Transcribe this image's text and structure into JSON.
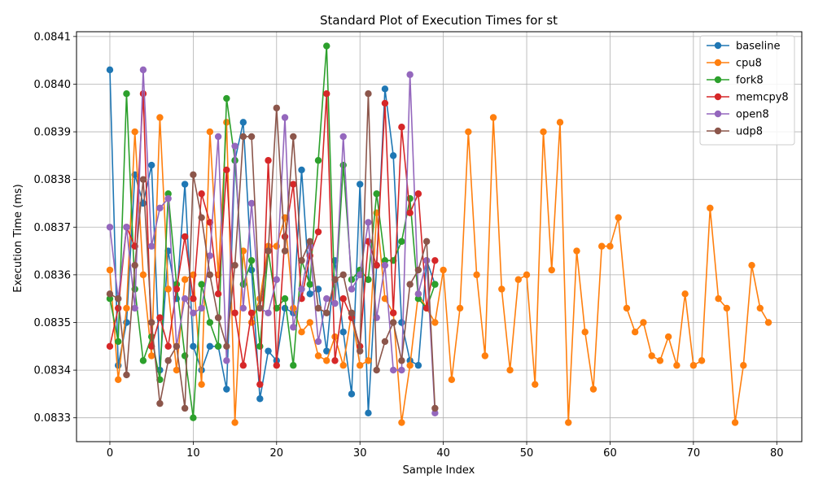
{
  "chart_data": {
    "type": "line",
    "title": "Standard Plot of Execution Times for st",
    "xlabel": "Sample Index",
    "ylabel": "Execution Time (ms)",
    "xlim": [
      -4,
      83
    ],
    "ylim": [
      0.08325,
      0.08411
    ],
    "xticks": [
      "0",
      "10",
      "20",
      "30",
      "40",
      "50",
      "60",
      "70",
      "80"
    ],
    "yticks": [
      "0.0833",
      "0.0834",
      "0.0835",
      "0.0836",
      "0.0837",
      "0.0838",
      "0.0839",
      "0.0840",
      "0.0841"
    ],
    "grid": true,
    "legend_position": "top-right",
    "series": [
      {
        "name": "baseline",
        "color": "#1f77b4",
        "values": [
          0.08403,
          0.08341,
          0.0835,
          0.08381,
          0.08375,
          0.08383,
          0.0834,
          0.08365,
          0.08355,
          0.08379,
          0.08345,
          0.0834,
          0.08345,
          0.08345,
          0.08336,
          0.08384,
          0.08392,
          0.08361,
          0.08334,
          0.08344,
          0.08342,
          0.08353,
          0.08352,
          0.08382,
          0.08356,
          0.08357,
          0.08344,
          0.08363,
          0.08348,
          0.08335,
          0.08379,
          0.08331,
          0.08362,
          0.08399,
          0.08385,
          0.0835,
          0.08342,
          0.08341,
          0.08363,
          0.08358
        ]
      },
      {
        "name": "cpu8",
        "color": "#ff7f0e",
        "values": [
          0.08361,
          0.08338,
          0.08353,
          0.0839,
          0.0836,
          0.08343,
          0.08393,
          0.08357,
          0.0834,
          0.08359,
          0.0836,
          0.08337,
          0.0839,
          0.0836,
          0.08392,
          0.08329,
          0.08365,
          0.0835,
          0.08355,
          0.08366,
          0.08366,
          0.08372,
          0.08353,
          0.08348,
          0.0835,
          0.08343,
          0.08342,
          0.08347,
          0.08341,
          0.08352,
          0.08341,
          0.08342,
          0.08373,
          0.08355,
          0.08352,
          0.08329,
          0.08341,
          0.08356,
          0.08353,
          0.0835,
          0.08361,
          0.08338,
          0.08353,
          0.0839,
          0.0836,
          0.08343,
          0.08393,
          0.08357,
          0.0834,
          0.08359,
          0.0836,
          0.08337,
          0.0839,
          0.08361,
          0.08392,
          0.08329,
          0.08365,
          0.08348,
          0.08336,
          0.08366,
          0.08366,
          0.08372,
          0.08353,
          0.08348,
          0.0835,
          0.08343,
          0.08342,
          0.08347,
          0.08341,
          0.08356,
          0.08341,
          0.08342,
          0.08374,
          0.08355,
          0.08353,
          0.08329,
          0.08341,
          0.08362,
          0.08353,
          0.0835
        ]
      },
      {
        "name": "fork8",
        "color": "#2ca02c",
        "values": [
          0.08355,
          0.08346,
          0.08398,
          0.08357,
          0.08342,
          0.08347,
          0.08338,
          0.08377,
          0.08358,
          0.08343,
          0.0833,
          0.08358,
          0.0835,
          0.08345,
          0.08397,
          0.08384,
          0.08358,
          0.08363,
          0.08345,
          0.08365,
          0.08353,
          0.08355,
          0.08341,
          0.08363,
          0.08358,
          0.08384,
          0.08408,
          0.08354,
          0.08383,
          0.08359,
          0.08361,
          0.08359,
          0.08377,
          0.08363,
          0.08363,
          0.08367,
          0.08376,
          0.08355,
          0.08353,
          0.08358
        ]
      },
      {
        "name": "memcpy8",
        "color": "#d62728",
        "values": [
          0.08345,
          0.08353,
          0.0837,
          0.08366,
          0.08398,
          0.08345,
          0.08351,
          0.08345,
          0.08357,
          0.08368,
          0.08355,
          0.08377,
          0.08371,
          0.08356,
          0.08382,
          0.08352,
          0.08341,
          0.08352,
          0.08337,
          0.08384,
          0.08341,
          0.08368,
          0.08379,
          0.08355,
          0.08364,
          0.08369,
          0.08398,
          0.08342,
          0.08355,
          0.08351,
          0.08345,
          0.08367,
          0.08362,
          0.08396,
          0.08352,
          0.08391,
          0.08373,
          0.08377,
          0.08353,
          0.08363
        ]
      },
      {
        "name": "open8",
        "color": "#9467bd",
        "values": [
          0.0837,
          0.08355,
          0.0837,
          0.08353,
          0.08403,
          0.08366,
          0.08374,
          0.08376,
          0.08345,
          0.08355,
          0.08352,
          0.08353,
          0.08364,
          0.08389,
          0.08342,
          0.08387,
          0.08353,
          0.08375,
          0.08353,
          0.08352,
          0.08359,
          0.08393,
          0.08349,
          0.08357,
          0.08366,
          0.08346,
          0.08355,
          0.08354,
          0.08389,
          0.08357,
          0.0836,
          0.08371,
          0.08351,
          0.08362,
          0.0834,
          0.0834,
          0.08402,
          0.08356,
          0.08363,
          0.08331
        ]
      },
      {
        "name": "udp8",
        "color": "#8c564b",
        "values": [
          0.08356,
          0.08355,
          0.08339,
          0.08362,
          0.0838,
          0.0835,
          0.08333,
          0.08342,
          0.08345,
          0.08332,
          0.08381,
          0.08372,
          0.0836,
          0.08351,
          0.08345,
          0.08362,
          0.08389,
          0.08389,
          0.08353,
          0.08365,
          0.08395,
          0.08365,
          0.08389,
          0.08363,
          0.08367,
          0.08353,
          0.08352,
          0.08359,
          0.0836,
          0.08352,
          0.08344,
          0.08398,
          0.0834,
          0.08346,
          0.0835,
          0.08342,
          0.08358,
          0.08361,
          0.08367,
          0.08332
        ]
      }
    ]
  }
}
